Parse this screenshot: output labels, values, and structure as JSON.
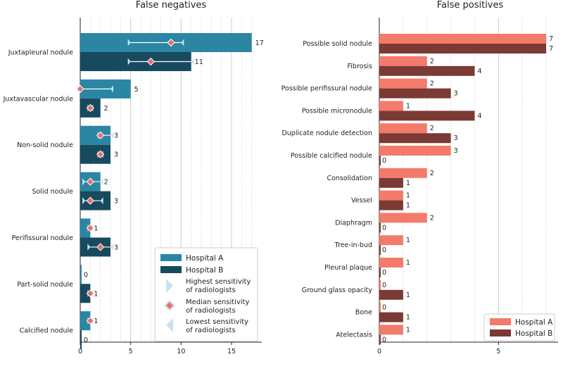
{
  "chart_data": [
    {
      "type": "bar",
      "orientation": "horizontal",
      "title": "False negatives",
      "categories": [
        "Juxtapleural nodule",
        "Juxtavascular nodule",
        "Non-solid nodule",
        "Solid nodule",
        "Perifissural nodule",
        "Part-solid nodule",
        "Calcified nodule"
      ],
      "series": [
        {
          "name": "Hospital A",
          "color": "#2a86a3",
          "values": [
            17,
            5,
            3,
            2,
            1,
            0,
            1
          ]
        },
        {
          "name": "Hospital B",
          "color": "#174a5e",
          "values": [
            11,
            2,
            3,
            3,
            3,
            1,
            0
          ]
        }
      ],
      "radiologist_sensitivity": {
        "Hospital A": [
          {
            "low": 5,
            "median": 9,
            "high": 10
          },
          {
            "low": 0,
            "median": 0,
            "high": 3
          },
          {
            "low": 2,
            "median": 2,
            "high": 3
          },
          {
            "low": 0.5,
            "median": 1,
            "high": 2
          },
          {
            "low": 1,
            "median": 1,
            "high": 1
          },
          null,
          {
            "low": 1,
            "median": 1,
            "high": 1
          }
        ],
        "Hospital B": [
          {
            "low": 5,
            "median": 7,
            "high": 11
          },
          {
            "low": 1,
            "median": 1,
            "high": 1
          },
          {
            "low": 2,
            "median": 2,
            "high": 2
          },
          {
            "low": 0.5,
            "median": 1,
            "high": 2
          },
          {
            "low": 1,
            "median": 2,
            "high": 3
          },
          {
            "low": 1,
            "median": 1,
            "high": 1
          },
          null
        ]
      },
      "xlim": [
        0,
        18
      ],
      "xticks": [
        0,
        5,
        10,
        15
      ],
      "legend": {
        "position": "bottom-right",
        "entries": [
          {
            "label": "Hospital A"
          },
          {
            "label": "Hospital B"
          },
          {
            "label_line1": "Highest sensitivity",
            "label_line2": "of radiologists"
          },
          {
            "label_line1": "Median sensitivity",
            "label_line2": "of radiologists"
          },
          {
            "label_line1": "Lowest sensitivity",
            "label_line2": "of radiologists"
          }
        ]
      }
    },
    {
      "type": "bar",
      "orientation": "horizontal",
      "title": "False positives",
      "categories": [
        "Possible solid nodule",
        "Fibrosis",
        "Possible perifissural nodule",
        "Possible micronodule",
        "Duplicate nodule detection",
        "Possible calcified nodule",
        "Consolidation",
        "Vessel",
        "Diaphragm",
        "Tree-in-bud",
        "Pleural plaque",
        "Ground glass opacity",
        "Bone",
        "Atelectasis"
      ],
      "series": [
        {
          "name": "Hospital A",
          "color": "#f47a6b",
          "values": [
            7,
            2,
            2,
            1,
            2,
            3,
            2,
            1,
            2,
            1,
            1,
            0,
            0,
            1
          ]
        },
        {
          "name": "Hospital B",
          "color": "#7b3a33",
          "values": [
            7,
            4,
            3,
            4,
            3,
            0,
            1,
            1,
            0,
            0,
            0,
            1,
            1,
            0
          ]
        }
      ],
      "xlim": [
        0,
        7.5
      ],
      "xticks": [
        0,
        5
      ],
      "legend": {
        "position": "bottom-right",
        "entries": [
          {
            "label": "Hospital A"
          },
          {
            "label": "Hospital B"
          }
        ]
      }
    }
  ]
}
